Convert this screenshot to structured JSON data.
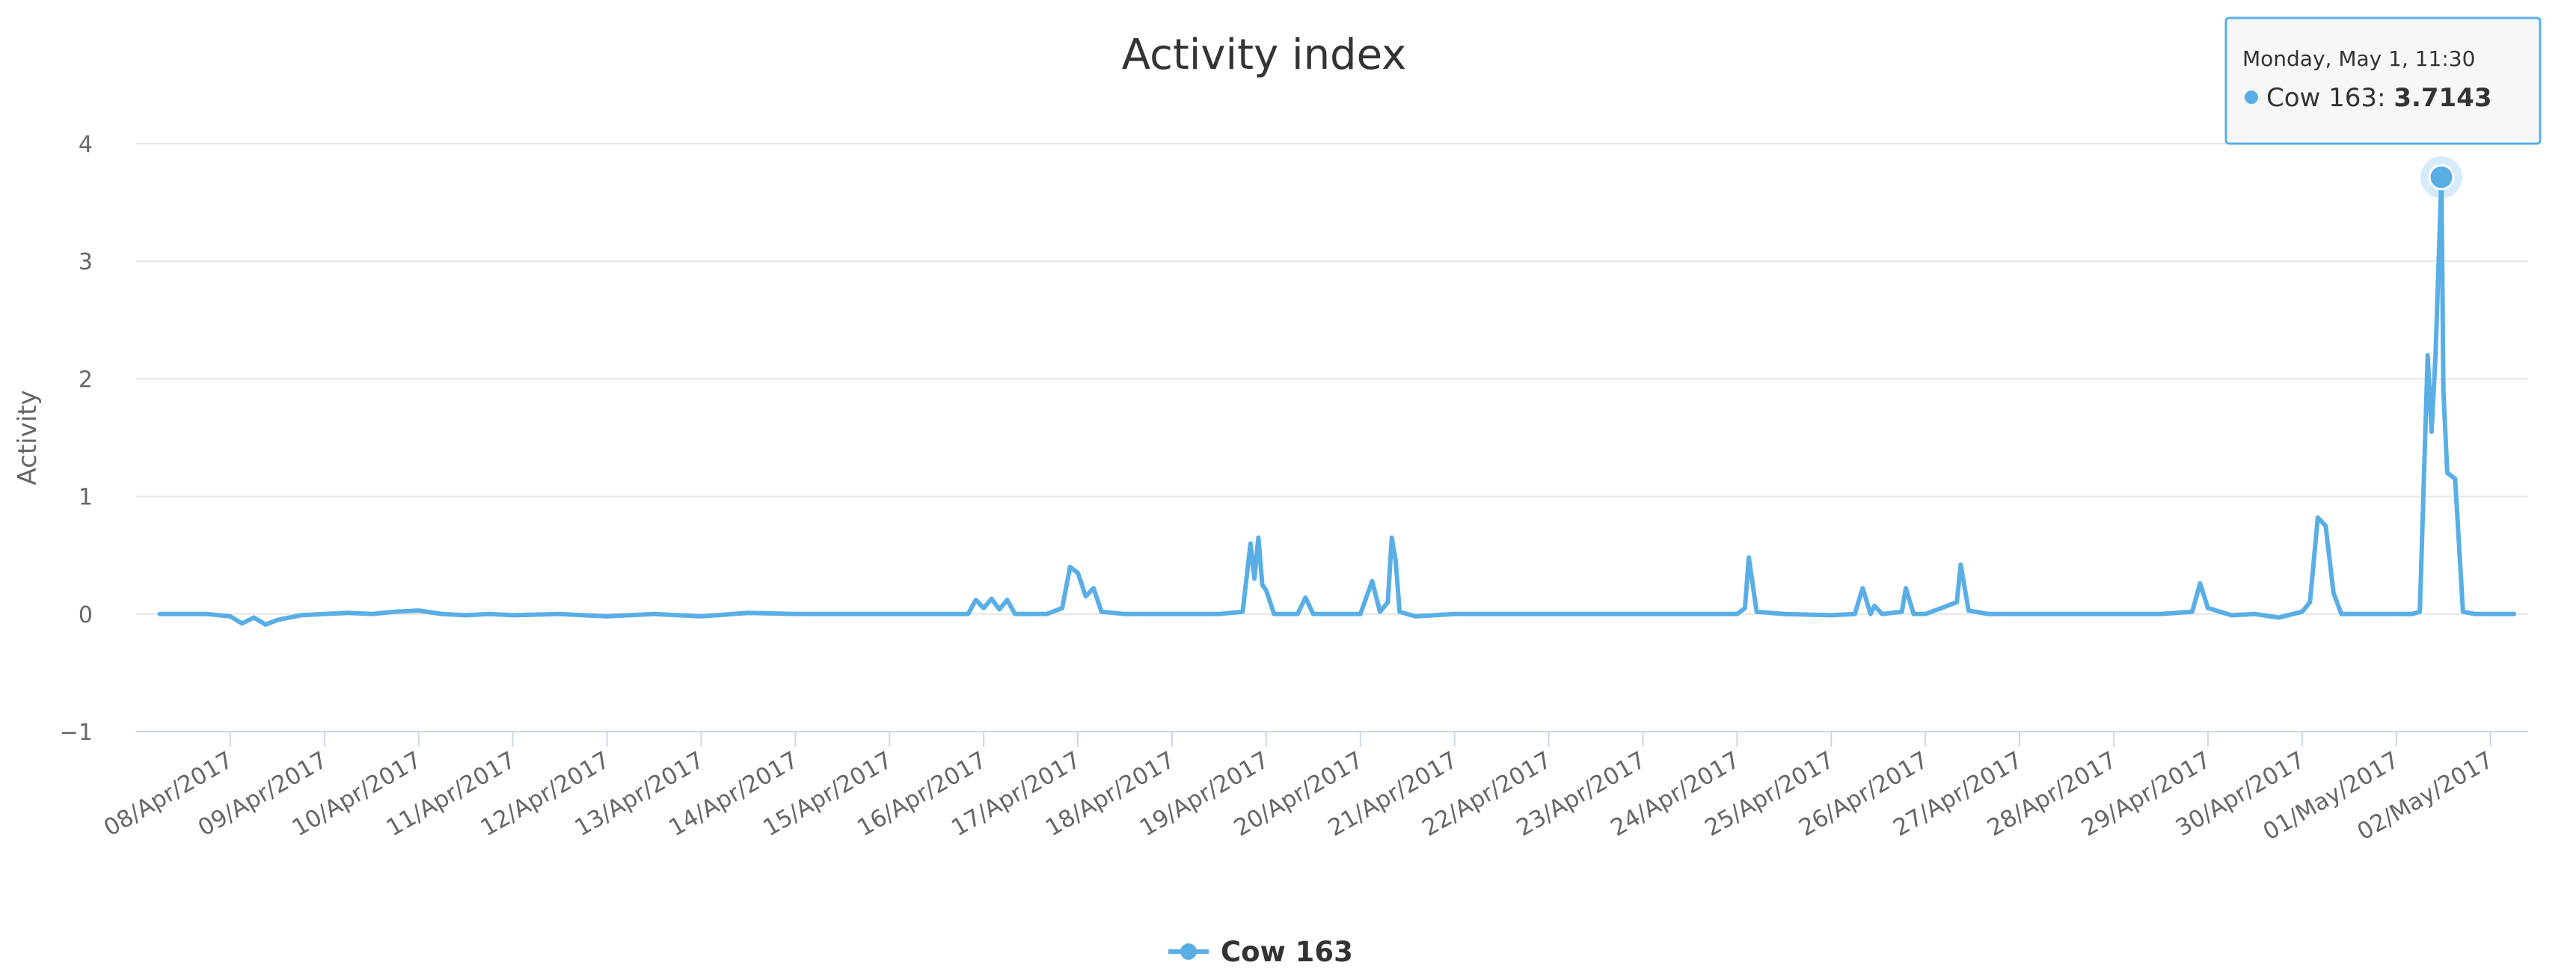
{
  "chart_data": {
    "type": "line",
    "title": "Activity index",
    "ylabel": "Activity",
    "xlabel": "",
    "ylim": [
      -1,
      4
    ],
    "yticks": [
      "−1",
      "0",
      "1",
      "2",
      "3",
      "4"
    ],
    "ytick_values": [
      -1,
      0,
      1,
      2,
      3,
      4
    ],
    "xlim": [
      "2017-04-07",
      "2017-05-02"
    ],
    "xticks": [
      "08/Apr/2017",
      "09/Apr/2017",
      "10/Apr/2017",
      "11/Apr/2017",
      "12/Apr/2017",
      "13/Apr/2017",
      "14/Apr/2017",
      "15/Apr/2017",
      "16/Apr/2017",
      "17/Apr/2017",
      "18/Apr/2017",
      "19/Apr/2017",
      "20/Apr/2017",
      "21/Apr/2017",
      "22/Apr/2017",
      "23/Apr/2017",
      "24/Apr/2017",
      "25/Apr/2017",
      "26/Apr/2017",
      "27/Apr/2017",
      "28/Apr/2017",
      "29/Apr/2017",
      "30/Apr/2017",
      "01/May/2017",
      "02/May/2017"
    ],
    "grid": "horizontal",
    "legend": "bottom-center",
    "colors": {
      "series": "#5aaee6",
      "grid": "#e6e6e6",
      "axis": "#ccd6eb",
      "tooltip_border": "#5aaee6"
    },
    "series": [
      {
        "name": "Cow 163",
        "points": [
          [
            "2017-04-07 06:00",
            0.0
          ],
          [
            "2017-04-07 12:00",
            0.0
          ],
          [
            "2017-04-07 18:00",
            0.0
          ],
          [
            "2017-04-08 00:00",
            -0.02
          ],
          [
            "2017-04-08 03:00",
            -0.08
          ],
          [
            "2017-04-08 06:00",
            -0.03
          ],
          [
            "2017-04-08 09:00",
            -0.09
          ],
          [
            "2017-04-08 12:00",
            -0.05
          ],
          [
            "2017-04-08 18:00",
            -0.01
          ],
          [
            "2017-04-09 00:00",
            0.0
          ],
          [
            "2017-04-09 06:00",
            0.01
          ],
          [
            "2017-04-09 12:00",
            0.0
          ],
          [
            "2017-04-09 18:00",
            0.02
          ],
          [
            "2017-04-10 00:00",
            0.03
          ],
          [
            "2017-04-10 06:00",
            0.0
          ],
          [
            "2017-04-10 12:00",
            -0.01
          ],
          [
            "2017-04-10 18:00",
            0.0
          ],
          [
            "2017-04-11 00:00",
            -0.01
          ],
          [
            "2017-04-11 12:00",
            0.0
          ],
          [
            "2017-04-12 00:00",
            -0.02
          ],
          [
            "2017-04-12 12:00",
            0.0
          ],
          [
            "2017-04-13 00:00",
            -0.02
          ],
          [
            "2017-04-13 12:00",
            0.01
          ],
          [
            "2017-04-14 00:00",
            0.0
          ],
          [
            "2017-04-14 12:00",
            0.0
          ],
          [
            "2017-04-15 00:00",
            0.0
          ],
          [
            "2017-04-15 12:00",
            0.0
          ],
          [
            "2017-04-15 20:00",
            0.0
          ],
          [
            "2017-04-15 22:00",
            0.12
          ],
          [
            "2017-04-16 00:00",
            0.05
          ],
          [
            "2017-04-16 02:00",
            0.13
          ],
          [
            "2017-04-16 04:00",
            0.04
          ],
          [
            "2017-04-16 06:00",
            0.12
          ],
          [
            "2017-04-16 08:00",
            0.0
          ],
          [
            "2017-04-16 16:00",
            0.0
          ],
          [
            "2017-04-16 20:00",
            0.05
          ],
          [
            "2017-04-16 22:00",
            0.4
          ],
          [
            "2017-04-17 00:00",
            0.35
          ],
          [
            "2017-04-17 02:00",
            0.15
          ],
          [
            "2017-04-17 04:00",
            0.22
          ],
          [
            "2017-04-17 06:00",
            0.02
          ],
          [
            "2017-04-17 12:00",
            0.0
          ],
          [
            "2017-04-18 00:00",
            0.0
          ],
          [
            "2017-04-18 12:00",
            0.0
          ],
          [
            "2017-04-18 18:00",
            0.02
          ],
          [
            "2017-04-18 20:00",
            0.6
          ],
          [
            "2017-04-18 21:00",
            0.3
          ],
          [
            "2017-04-18 22:00",
            0.65
          ],
          [
            "2017-04-18 23:00",
            0.25
          ],
          [
            "2017-04-19 00:00",
            0.2
          ],
          [
            "2017-04-19 02:00",
            0.0
          ],
          [
            "2017-04-19 08:00",
            0.0
          ],
          [
            "2017-04-19 10:00",
            0.14
          ],
          [
            "2017-04-19 12:00",
            0.0
          ],
          [
            "2017-04-20 00:00",
            0.0
          ],
          [
            "2017-04-20 03:00",
            0.28
          ],
          [
            "2017-04-20 05:00",
            0.02
          ],
          [
            "2017-04-20 07:00",
            0.1
          ],
          [
            "2017-04-20 08:00",
            0.65
          ],
          [
            "2017-04-20 09:00",
            0.45
          ],
          [
            "2017-04-20 10:00",
            0.02
          ],
          [
            "2017-04-20 14:00",
            -0.02
          ],
          [
            "2017-04-21 00:00",
            0.0
          ],
          [
            "2017-04-21 12:00",
            0.0
          ],
          [
            "2017-04-22 00:00",
            0.0
          ],
          [
            "2017-04-22 12:00",
            0.0
          ],
          [
            "2017-04-23 00:00",
            0.0
          ],
          [
            "2017-04-23 12:00",
            0.0
          ],
          [
            "2017-04-24 00:00",
            0.0
          ],
          [
            "2017-04-24 02:00",
            0.05
          ],
          [
            "2017-04-24 03:00",
            0.48
          ],
          [
            "2017-04-24 05:00",
            0.02
          ],
          [
            "2017-04-24 12:00",
            0.0
          ],
          [
            "2017-04-25 00:00",
            -0.01
          ],
          [
            "2017-04-25 06:00",
            0.0
          ],
          [
            "2017-04-25 08:00",
            0.22
          ],
          [
            "2017-04-25 10:00",
            0.0
          ],
          [
            "2017-04-25 11:00",
            0.07
          ],
          [
            "2017-04-25 13:00",
            0.0
          ],
          [
            "2017-04-25 18:00",
            0.02
          ],
          [
            "2017-04-25 19:00",
            0.22
          ],
          [
            "2017-04-25 21:00",
            0.0
          ],
          [
            "2017-04-26 00:00",
            0.0
          ],
          [
            "2017-04-26 08:00",
            0.1
          ],
          [
            "2017-04-26 09:00",
            0.42
          ],
          [
            "2017-04-26 11:00",
            0.03
          ],
          [
            "2017-04-26 16:00",
            0.0
          ],
          [
            "2017-04-27 00:00",
            0.0
          ],
          [
            "2017-04-27 12:00",
            0.0
          ],
          [
            "2017-04-28 00:00",
            0.0
          ],
          [
            "2017-04-28 12:00",
            0.0
          ],
          [
            "2017-04-28 20:00",
            0.02
          ],
          [
            "2017-04-28 22:00",
            0.26
          ],
          [
            "2017-04-29 00:00",
            0.05
          ],
          [
            "2017-04-29 06:00",
            -0.01
          ],
          [
            "2017-04-29 12:00",
            0.0
          ],
          [
            "2017-04-29 18:00",
            -0.03
          ],
          [
            "2017-04-30 00:00",
            0.02
          ],
          [
            "2017-04-30 02:00",
            0.1
          ],
          [
            "2017-04-30 04:00",
            0.82
          ],
          [
            "2017-04-30 06:00",
            0.75
          ],
          [
            "2017-04-30 08:00",
            0.18
          ],
          [
            "2017-04-30 10:00",
            0.0
          ],
          [
            "2017-04-30 18:00",
            0.0
          ],
          [
            "2017-05-01 00:00",
            0.0
          ],
          [
            "2017-05-01 04:00",
            0.0
          ],
          [
            "2017-05-01 06:00",
            0.02
          ],
          [
            "2017-05-01 08:00",
            2.2
          ],
          [
            "2017-05-01 09:00",
            1.55
          ],
          [
            "2017-05-01 10:00",
            2.2
          ],
          [
            "2017-05-01 11:30",
            3.7143
          ],
          [
            "2017-05-01 12:00",
            1.9
          ],
          [
            "2017-05-01 13:00",
            1.2
          ],
          [
            "2017-05-01 15:00",
            1.15
          ],
          [
            "2017-05-01 17:00",
            0.02
          ],
          [
            "2017-05-01 20:00",
            0.0
          ],
          [
            "2017-05-02 00:00",
            0.0
          ],
          [
            "2017-05-02 06:00",
            0.0
          ]
        ]
      }
    ],
    "tooltip": {
      "header": "Monday, May 1, 11:30",
      "series_name": "Cow 163",
      "value_text": "3.7143",
      "point": [
        "2017-05-01 11:30",
        3.7143
      ]
    }
  }
}
